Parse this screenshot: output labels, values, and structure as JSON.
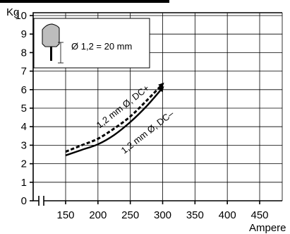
{
  "chart_data": {
    "type": "line",
    "title": "",
    "ylabel": "Kg",
    "xlabel": "Ampere",
    "xlim": [
      100,
      500
    ],
    "ylim": [
      0,
      10
    ],
    "xticks": [
      150,
      200,
      250,
      300,
      350,
      400,
      450
    ],
    "yticks": [
      0,
      1,
      2,
      3,
      4,
      5,
      6,
      7,
      8,
      9,
      10
    ],
    "grid": true,
    "series": [
      {
        "name": "1,2 mm Ø, DC+",
        "style": "dashed",
        "x": [
          150,
          175,
          200,
          225,
          250,
          275,
          300
        ],
        "y": [
          2.65,
          3.0,
          3.35,
          3.9,
          4.55,
          5.4,
          6.3
        ]
      },
      {
        "name": "1,2 mm Ø, DC–",
        "style": "solid",
        "x": [
          150,
          175,
          200,
          225,
          250,
          275,
          300
        ],
        "y": [
          2.45,
          2.75,
          3.05,
          3.55,
          4.25,
          5.1,
          6.1
        ]
      }
    ],
    "inset": {
      "label": "Ø 1,2 = 20 mm"
    }
  }
}
